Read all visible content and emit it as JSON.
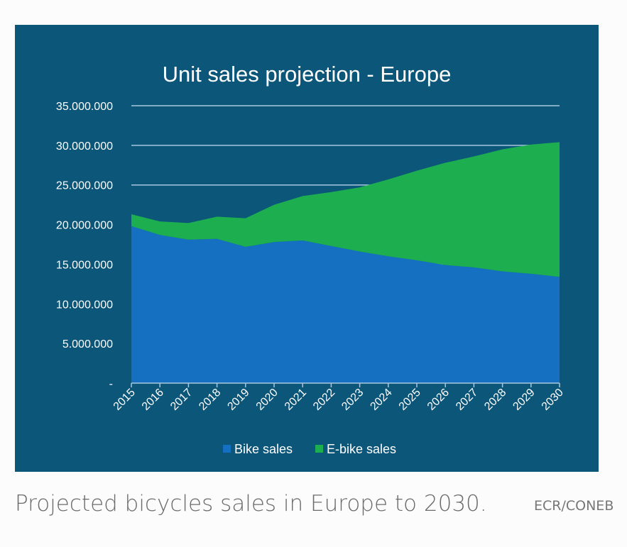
{
  "chart_data": {
    "type": "area",
    "stacked": true,
    "title": "Unit sales projection - Europe",
    "categories": [
      "2015",
      "2016",
      "2017",
      "2018",
      "2019",
      "2020",
      "2021",
      "2022",
      "2023",
      "2024",
      "2025",
      "2026",
      "2027",
      "2028",
      "2029",
      "2030"
    ],
    "series": [
      {
        "name": "Bike sales",
        "color": "#1570c1",
        "values": [
          19800000,
          18700000,
          18100000,
          18200000,
          17200000,
          17800000,
          18000000,
          17300000,
          16600000,
          16000000,
          15500000,
          14900000,
          14600000,
          14100000,
          13800000,
          13400000
        ]
      },
      {
        "name": "E-bike sales",
        "color": "#1daf4f",
        "values": [
          1500000,
          1700000,
          2100000,
          2800000,
          3600000,
          4700000,
          5600000,
          6800000,
          8100000,
          9700000,
          11300000,
          12900000,
          14000000,
          15400000,
          16300000,
          17000000
        ]
      }
    ],
    "yticks": [
      "-",
      "5.000.000",
      "10.000.000",
      "15.000.000",
      "20.000.000",
      "25.000.000",
      "30.000.000",
      "35.000.000"
    ],
    "ylim": [
      0,
      35000000
    ],
    "grid": true,
    "legend": "bottom",
    "background": "#0b5679"
  },
  "caption": "Projected bicycles sales in Europe to 2030.",
  "credit": "ECR/CONEB"
}
